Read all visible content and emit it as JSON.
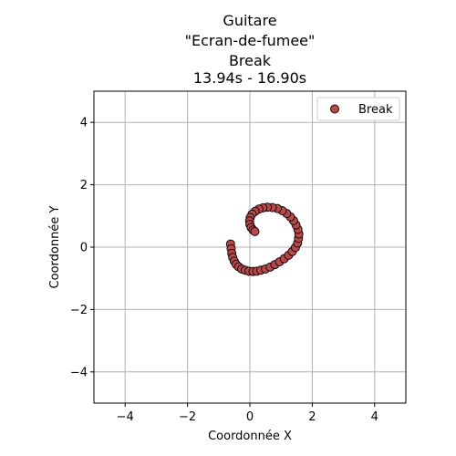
{
  "chart_data": {
    "type": "scatter",
    "title_lines": [
      "Guitare",
      "\"Ecran-de-fumee\"",
      "Break",
      "13.94s - 16.90s"
    ],
    "xlabel": "Coordonnée X",
    "ylabel": "Coordonnée Y",
    "xlim": [
      -5,
      5
    ],
    "ylim": [
      -5,
      5
    ],
    "xticks": [
      -4,
      -2,
      0,
      2,
      4
    ],
    "yticks": [
      -4,
      -2,
      0,
      2,
      4
    ],
    "xtick_labels": [
      "−4",
      "−2",
      "0",
      "2",
      "4"
    ],
    "ytick_labels": [
      "−4",
      "−2",
      "0",
      "2",
      "4"
    ],
    "grid": true,
    "legend_position": "top-right",
    "series": [
      {
        "name": "Break",
        "color": "#b5494b",
        "edge_color": "#1a0808",
        "points": [
          [
            -0.62,
            0.1
          ],
          [
            -0.6,
            -0.05
          ],
          [
            -0.58,
            -0.2
          ],
          [
            -0.55,
            -0.33
          ],
          [
            -0.5,
            -0.45
          ],
          [
            -0.44,
            -0.55
          ],
          [
            -0.36,
            -0.63
          ],
          [
            -0.26,
            -0.7
          ],
          [
            -0.15,
            -0.74
          ],
          [
            -0.03,
            -0.77
          ],
          [
            0.1,
            -0.78
          ],
          [
            0.22,
            -0.77
          ],
          [
            0.35,
            -0.74
          ],
          [
            0.5,
            -0.7
          ],
          [
            0.65,
            -0.64
          ],
          [
            0.8,
            -0.56
          ],
          [
            0.95,
            -0.47
          ],
          [
            1.1,
            -0.37
          ],
          [
            1.24,
            -0.26
          ],
          [
            1.36,
            -0.14
          ],
          [
            1.46,
            -0.01
          ],
          [
            1.53,
            0.13
          ],
          [
            1.56,
            0.28
          ],
          [
            1.57,
            0.42
          ],
          [
            1.54,
            0.57
          ],
          [
            1.48,
            0.71
          ],
          [
            1.4,
            0.85
          ],
          [
            1.3,
            0.97
          ],
          [
            1.18,
            1.08
          ],
          [
            1.04,
            1.17
          ],
          [
            0.88,
            1.24
          ],
          [
            0.72,
            1.27
          ],
          [
            0.56,
            1.28
          ],
          [
            0.42,
            1.26
          ],
          [
            0.29,
            1.22
          ],
          [
            0.17,
            1.15
          ],
          [
            0.07,
            1.06
          ],
          [
            0.01,
            0.95
          ],
          [
            -0.01,
            0.84
          ],
          [
            0.0,
            0.73
          ],
          [
            0.04,
            0.63
          ],
          [
            0.1,
            0.55
          ],
          [
            0.16,
            0.5
          ]
        ]
      }
    ]
  }
}
